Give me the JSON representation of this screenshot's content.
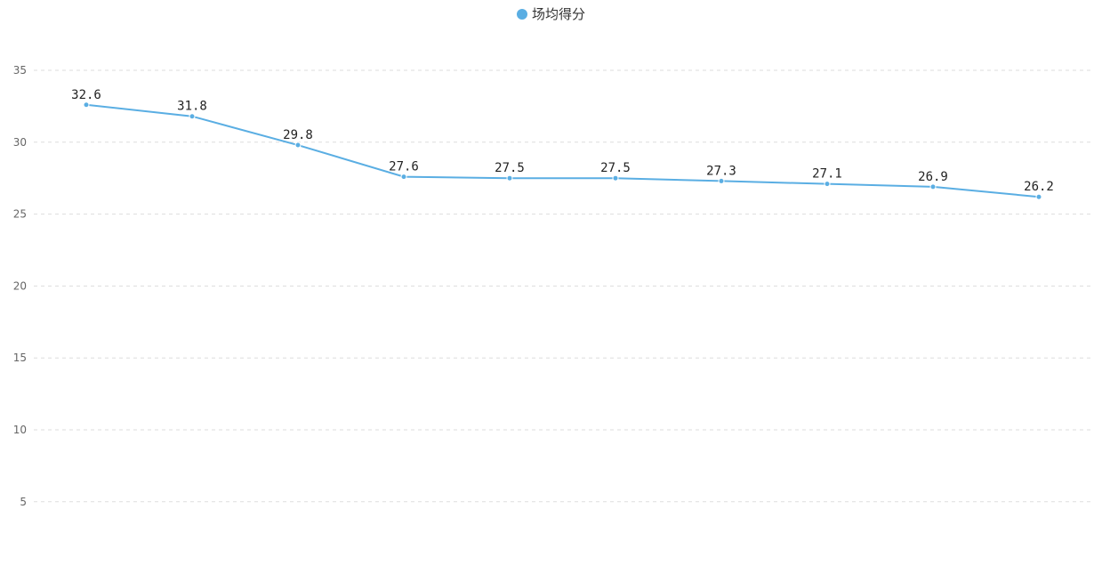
{
  "chart_data": {
    "type": "line",
    "categories": [
      "",
      "",
      "",
      "",
      "",
      "",
      "",
      "",
      "",
      ""
    ],
    "series": [
      {
        "name": "场均得分",
        "values": [
          32.6,
          31.8,
          29.8,
          27.6,
          27.5,
          27.5,
          27.3,
          27.1,
          26.9,
          26.2
        ]
      }
    ],
    "data_labels": [
      "32.6",
      "31.8",
      "29.8",
      "27.6",
      "27.5",
      "27.5",
      "27.3",
      "27.1",
      "26.9",
      "26.2"
    ],
    "y_ticks": [
      5,
      10,
      15,
      20,
      25,
      30,
      35
    ],
    "ylim": [
      0,
      37.5
    ],
    "grid": true,
    "legend_position": "top-center",
    "series_color": "#5aaee3"
  }
}
